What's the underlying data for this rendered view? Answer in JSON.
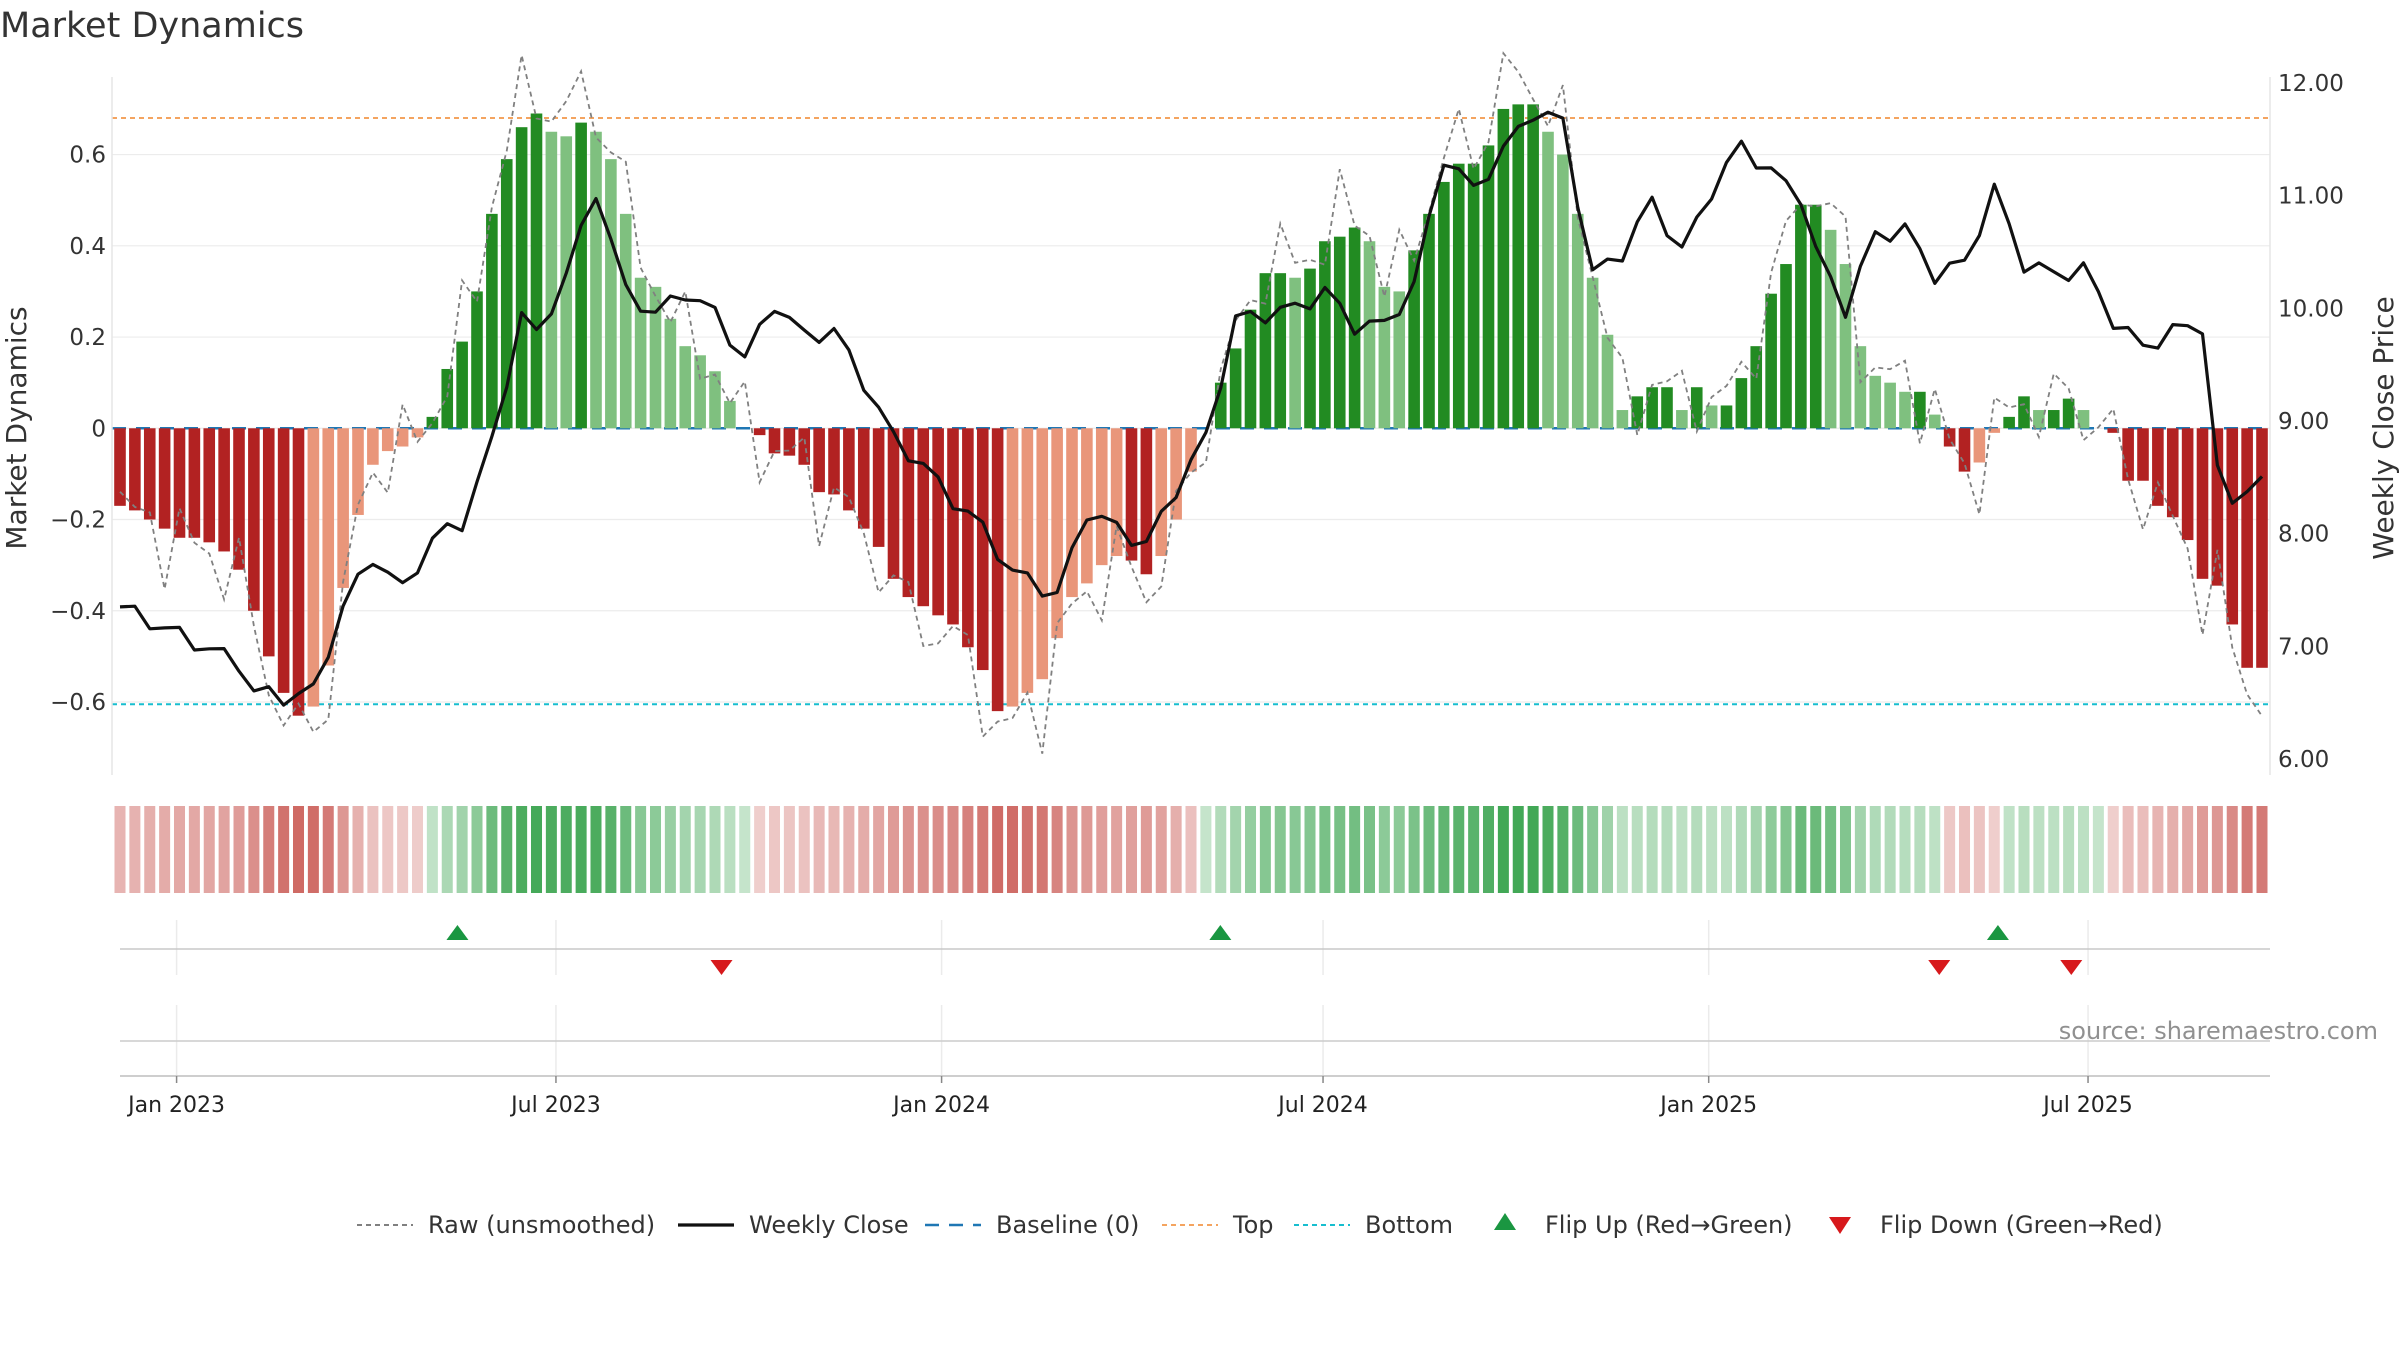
{
  "chart_data": {
    "type": "bar",
    "title": "Market Dynamics",
    "ylabel_left": "Market Dynamics",
    "ylabel_right": "Weekly Close Price",
    "source": "source: sharemaestro.com",
    "ylim_left": [
      -0.76,
      0.77
    ],
    "ylim_right": [
      6.0,
      12.0
    ],
    "yticks_left": [
      -0.6,
      -0.4,
      -0.2,
      0,
      0.2,
      0.4,
      0.6
    ],
    "yticks_left_labels": [
      "−0.6",
      "−0.4",
      "−0.2",
      "0",
      "0.2",
      "0.4",
      "0.6"
    ],
    "yticks_right": [
      6,
      7,
      8,
      9,
      10,
      11,
      12
    ],
    "yticks_right_labels": [
      "6.00",
      "7.00",
      "8.00",
      "9.00",
      "10.00",
      "11.00",
      "12.00"
    ],
    "x_start_date": "2022-12-05",
    "x_end_date": "2025-09-22",
    "x_ticks": [
      {
        "date": "2023-01-01",
        "label": "Jan 2023"
      },
      {
        "date": "2023-07-01",
        "label": "Jul 2023"
      },
      {
        "date": "2024-01-01",
        "label": "Jan 2024"
      },
      {
        "date": "2024-07-01",
        "label": "Jul 2024"
      },
      {
        "date": "2025-01-01",
        "label": "Jan 2025"
      },
      {
        "date": "2025-07-01",
        "label": "Jul 2025"
      }
    ],
    "top_level": 0.68,
    "bottom_level": -0.605,
    "colors": {
      "strong_green": "#228B22",
      "light_green": "#7FC07F",
      "strong_red": "#B22222",
      "light_red": "#E9967A",
      "raw_line": "#808080",
      "close_line": "#111111",
      "baseline": "#1f77b4",
      "top": "#f4a460",
      "bottom": "#17becf",
      "flip_up": "#1a9641",
      "flip_down": "#d7191c"
    },
    "dynamics": [
      -0.17,
      -0.18,
      -0.2,
      -0.22,
      -0.24,
      -0.24,
      -0.25,
      -0.27,
      -0.31,
      -0.4,
      -0.5,
      -0.58,
      -0.63,
      -0.61,
      -0.52,
      -0.35,
      -0.19,
      -0.08,
      -0.05,
      -0.04,
      -0.02,
      0.025,
      0.13,
      0.19,
      0.3,
      0.47,
      0.59,
      0.66,
      0.69,
      0.65,
      0.64,
      0.67,
      0.65,
      0.59,
      0.47,
      0.33,
      0.31,
      0.24,
      0.18,
      0.16,
      0.125,
      0.06,
      0,
      -0.015,
      -0.055,
      -0.06,
      -0.08,
      -0.14,
      -0.145,
      -0.18,
      -0.22,
      -0.26,
      -0.33,
      -0.37,
      -0.39,
      -0.41,
      -0.43,
      -0.48,
      -0.53,
      -0.62,
      -0.61,
      -0.58,
      -0.55,
      -0.46,
      -0.37,
      -0.34,
      -0.3,
      -0.28,
      -0.29,
      -0.32,
      -0.28,
      -0.2,
      -0.095,
      0,
      0.1,
      0.175,
      0.26,
      0.34,
      0.34,
      0.33,
      0.35,
      0.41,
      0.42,
      0.44,
      0.41,
      0.31,
      0.3,
      0.39,
      0.47,
      0.54,
      0.58,
      0.58,
      0.62,
      0.7,
      0.71,
      0.71,
      0.65,
      0.6,
      0.47,
      0.33,
      0.205,
      0.04,
      0.07,
      0.09,
      0.09,
      0.04,
      0.09,
      0.05,
      0.05,
      0.11,
      0.18,
      0.295,
      0.36,
      0.49,
      0.49,
      0.435,
      0.36,
      0.18,
      0.115,
      0.1,
      0.08,
      0.08,
      0.03,
      -0.04,
      -0.095,
      -0.075,
      -0.01,
      0.025,
      0.07,
      0.04,
      0.04,
      0.065,
      0.04,
      0,
      -0.01,
      -0.115,
      -0.115,
      -0.17,
      -0.195,
      -0.245,
      -0.33,
      -0.345,
      -0.43,
      -0.525,
      -0.525
    ],
    "flips_up": [
      "2023-05-15",
      "2024-05-13",
      "2025-05-19"
    ],
    "flips_down": [
      "2023-09-18",
      "2025-04-21",
      "2025-06-23"
    ],
    "legend": [
      "Raw (unsmoothed)",
      "Weekly Close",
      "Baseline (0)",
      "Top",
      "Bottom",
      "Flip Up (Red→Green)",
      "Flip Down (Green→Red)"
    ]
  }
}
